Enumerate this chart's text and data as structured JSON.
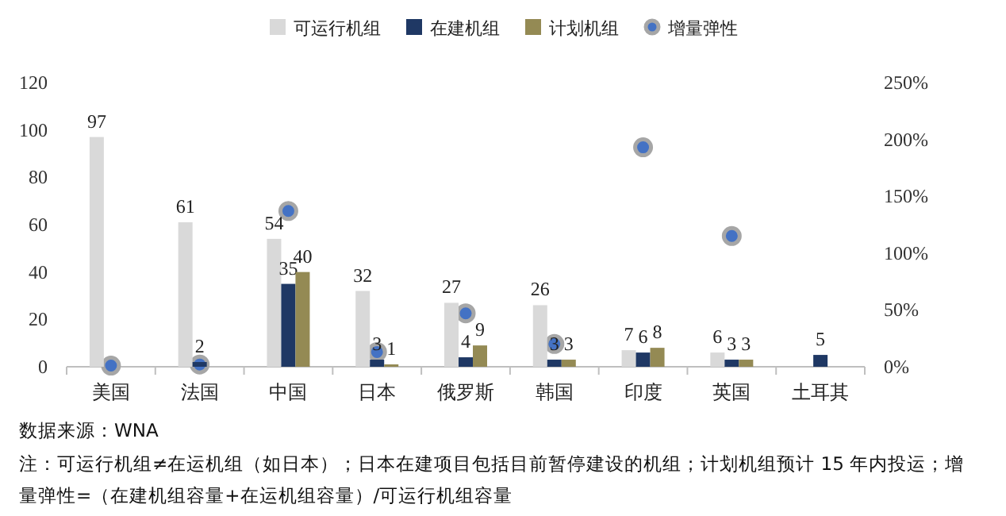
{
  "chart_data": {
    "type": "bar",
    "categories": [
      "美国",
      "法国",
      "中国",
      "日本",
      "俄罗斯",
      "韩国",
      "印度",
      "英国",
      "土耳其"
    ],
    "series": [
      {
        "name": "可运行机组",
        "color": "#d9d9d9",
        "values": [
          97,
          61,
          54,
          32,
          27,
          26,
          7,
          6,
          null
        ],
        "value_labels": [
          "97",
          "61",
          "54",
          "32",
          "27",
          "26",
          "7",
          "6",
          null
        ]
      },
      {
        "name": "在建机组",
        "color": "#1f3864",
        "values": [
          null,
          2,
          35,
          3,
          4,
          3,
          6,
          3,
          5
        ],
        "value_labels": [
          null,
          "2",
          "35",
          "3",
          "4",
          "3",
          "6",
          "3",
          "5"
        ]
      },
      {
        "name": "计划机组",
        "color": "#948a54",
        "values": [
          null,
          null,
          40,
          1,
          9,
          3,
          8,
          3,
          null
        ],
        "value_labels": [
          null,
          null,
          "40",
          "1",
          "9",
          "3",
          "8",
          "3",
          null
        ]
      },
      {
        "name": "增量弹性",
        "type": "scatter",
        "axis": "y2",
        "color": "#4472c4",
        "marker": "circle",
        "values": [
          1,
          2,
          137,
          13,
          47,
          20,
          193,
          115,
          null
        ]
      }
    ],
    "ylim": [
      0,
      120
    ],
    "yticks": [
      0,
      20,
      40,
      60,
      80,
      100,
      120
    ],
    "y2lim": [
      0,
      250
    ],
    "y2ticks": [
      {
        "value": 0,
        "label": "0%"
      },
      {
        "value": 50,
        "label": "50%"
      },
      {
        "value": 100,
        "label": "100%"
      },
      {
        "value": 150,
        "label": "150%"
      },
      {
        "value": 200,
        "label": "200%"
      },
      {
        "value": 250,
        "label": "250%"
      }
    ],
    "legend": "top",
    "grid": false,
    "annotations": [
      "数据来源：WNA",
      "注：可运行机组≠在运机组（如日本）；日本在建项目包括目前暂停建设的机组；计划机组预计 15 年内投运；增量弹性=（在建机组容量+在运机组容量）/可运行机组容量"
    ]
  }
}
